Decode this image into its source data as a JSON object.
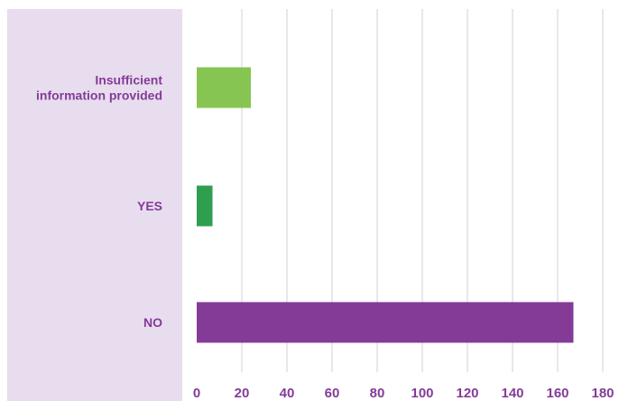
{
  "chart_data": {
    "type": "bar",
    "orientation": "horizontal",
    "categories": [
      "Insufficient information provided",
      "YES",
      "NO"
    ],
    "category_label_lines": [
      [
        "Insufficient",
        "information provided"
      ],
      [
        "YES"
      ],
      [
        "NO"
      ]
    ],
    "values": [
      24,
      7,
      167
    ],
    "bar_colors": [
      "#86c552",
      "#2e9e4f",
      "#843b98"
    ],
    "x_ticks": [
      0,
      20,
      40,
      60,
      80,
      100,
      120,
      140,
      160,
      180
    ],
    "xlim": [
      0,
      180
    ],
    "grid": true,
    "legend": "none",
    "title": "",
    "xlabel": "",
    "ylabel": ""
  },
  "colors": {
    "label_panel": "#e8ddee",
    "label_text": "#843b98",
    "grid": "#dcd5e3",
    "background": "#ffffff"
  }
}
